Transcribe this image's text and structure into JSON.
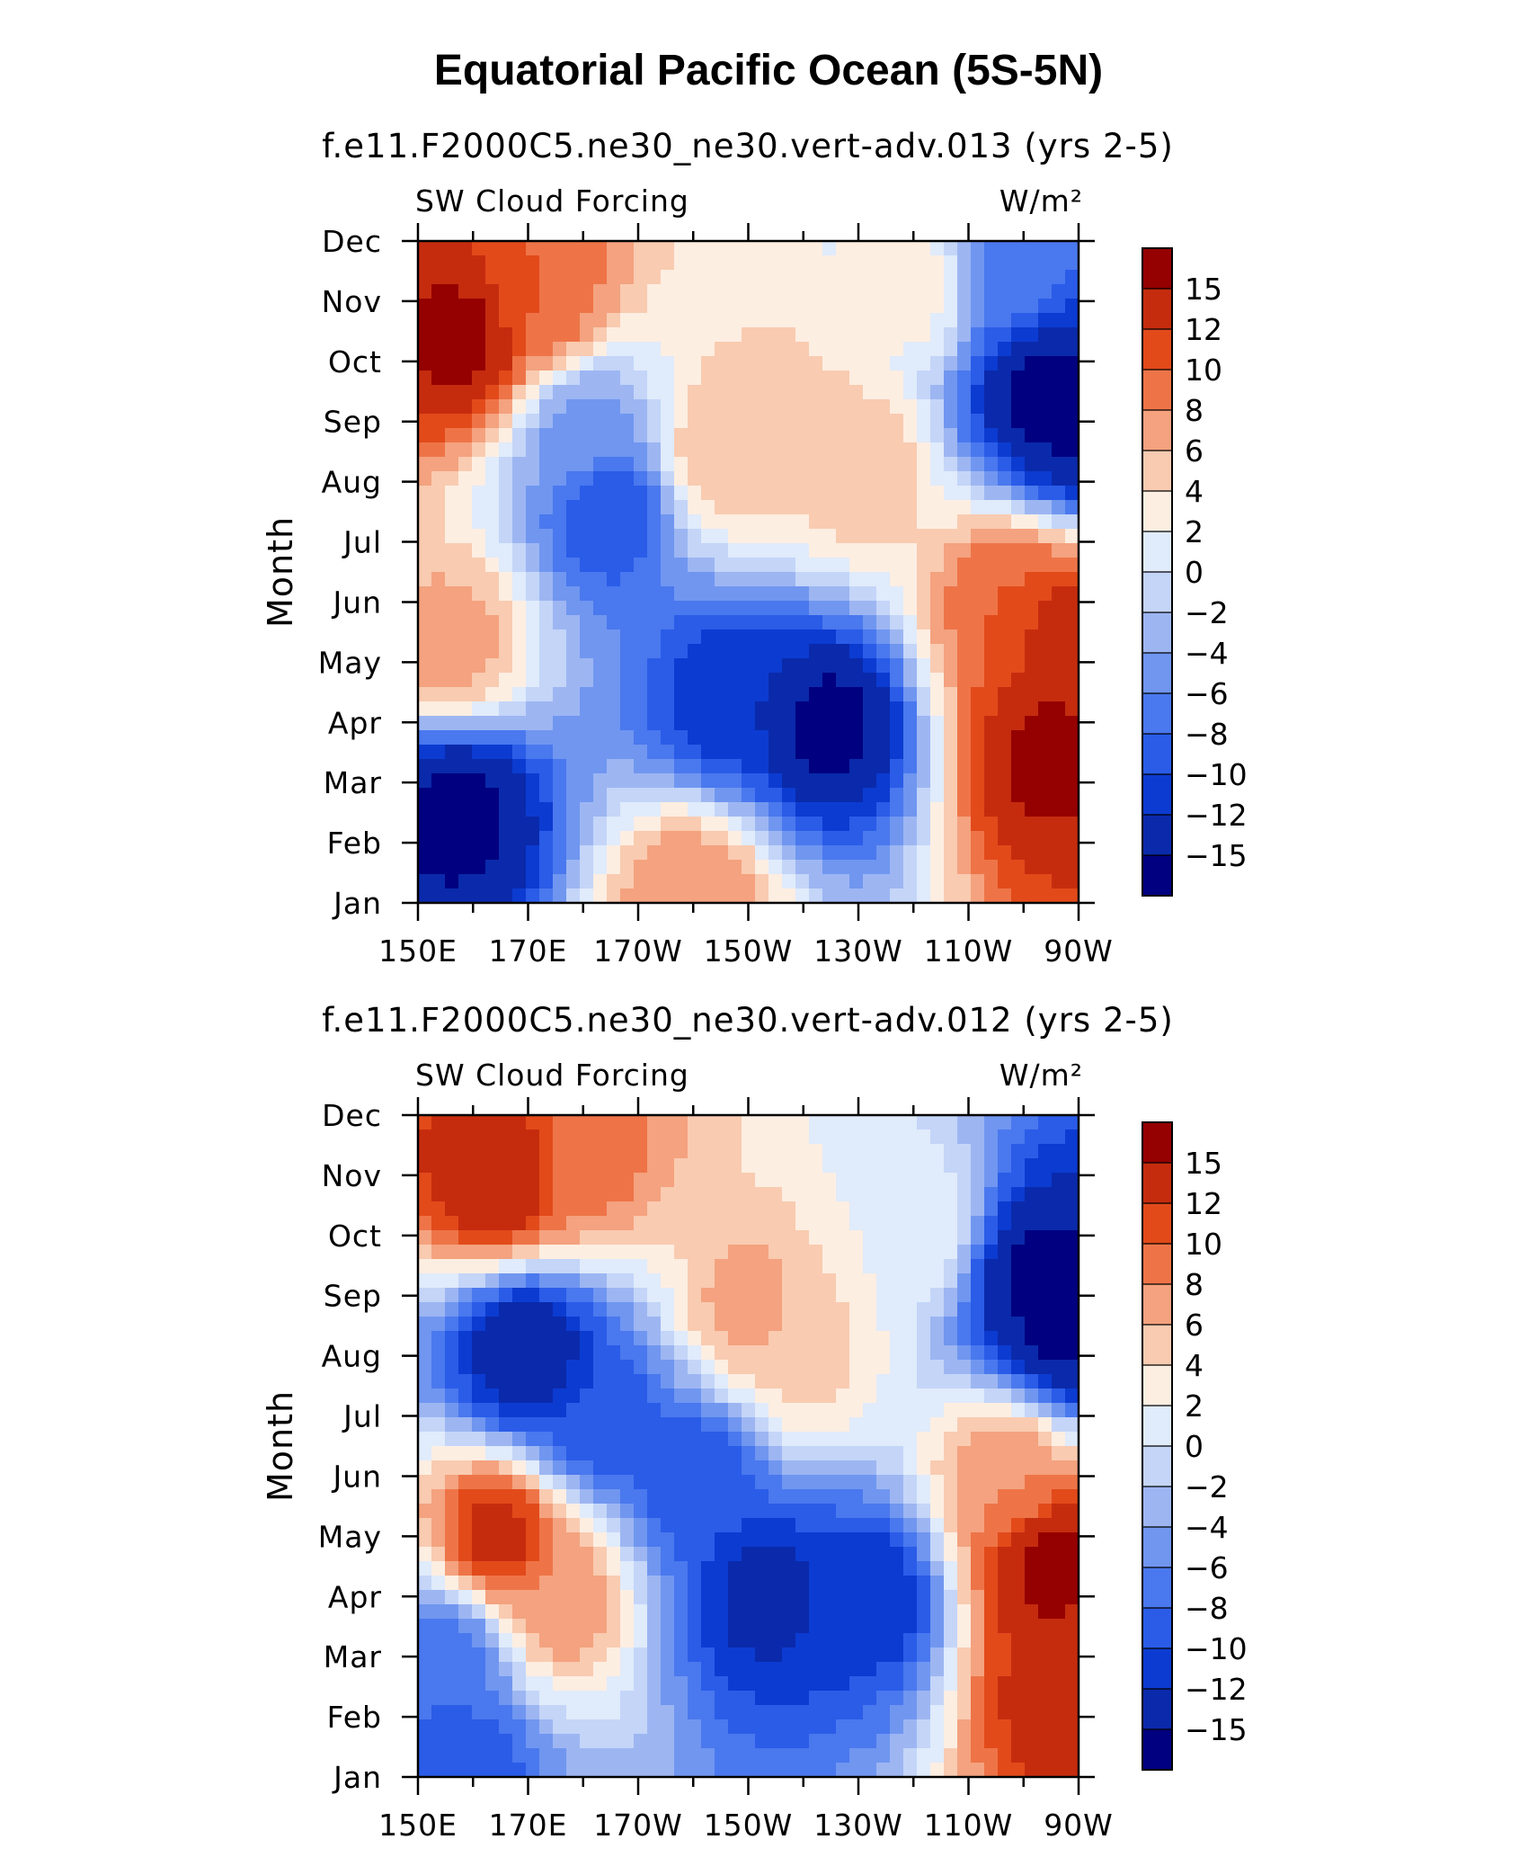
{
  "figure_title": "Equatorial Pacific Ocean (5S-5N)",
  "chart_data": [
    {
      "type": "heatmap",
      "title": "f.e11.F2000C5.ne30_ne30.vert-adv.013 (yrs 2-5)",
      "left_label": "SW Cloud Forcing",
      "units": "W/m²",
      "ylabel": "Month",
      "x_ticks": [
        "150E",
        "170E",
        "170W",
        "150W",
        "130W",
        "110W",
        "90W"
      ],
      "y_ticks": [
        "Jan",
        "Feb",
        "Mar",
        "Apr",
        "May",
        "Jun",
        "Jul",
        "Aug",
        "Sep",
        "Oct",
        "Nov",
        "Dec"
      ],
      "x_range": [
        "150E",
        "90W"
      ],
      "features": [
        {
          "lon": 158,
          "month": 10.4,
          "value": 16
        },
        {
          "lon": 172,
          "month": 11.0,
          "value": 10
        },
        {
          "lon": 156,
          "month": 5.3,
          "value": 7
        },
        {
          "lon": 205,
          "month": 8.5,
          "value": 6
        },
        {
          "lon": 215,
          "month": 9.0,
          "value": 5
        },
        {
          "lon": 230,
          "month": 8.2,
          "value": 6
        },
        {
          "lon": 200,
          "month": 1.1,
          "value": 8
        },
        {
          "lon": 157,
          "month": 2.5,
          "value": -16
        },
        {
          "lon": 225,
          "month": 4.0,
          "value": -16
        },
        {
          "lon": 207,
          "month": 4.5,
          "value": -12
        },
        {
          "lon": 185,
          "month": 7.5,
          "value": -10
        },
        {
          "lon": 180,
          "month": 8.8,
          "value": -5
        },
        {
          "lon": 263,
          "month": 9.5,
          "value": -16
        },
        {
          "lon": 270,
          "month": 9.0,
          "value": -16
        },
        {
          "lon": 258,
          "month": 11.5,
          "value": -7
        },
        {
          "lon": 265,
          "month": 3.5,
          "value": 16
        },
        {
          "lon": 267,
          "month": 5.5,
          "value": 14
        },
        {
          "lon": 257,
          "month": 6.0,
          "value": 10
        },
        {
          "lon": 240,
          "month": 11.2,
          "value": 3
        }
      ]
    },
    {
      "type": "heatmap",
      "title": "f.e11.F2000C5.ne30_ne30.vert-adv.012 (yrs 2-5)",
      "left_label": "SW Cloud Forcing",
      "units": "W/m²",
      "ylabel": "Month",
      "x_ticks": [
        "150E",
        "170E",
        "170W",
        "150W",
        "130W",
        "110W",
        "90W"
      ],
      "y_ticks": [
        "Jan",
        "Feb",
        "Mar",
        "Apr",
        "May",
        "Jun",
        "Jul",
        "Aug",
        "Sep",
        "Oct",
        "Nov",
        "Dec"
      ],
      "x_range": [
        "150E",
        "90W"
      ],
      "features": [
        {
          "lon": 165,
          "month": 11.0,
          "value": 15
        },
        {
          "lon": 180,
          "month": 11.3,
          "value": 9
        },
        {
          "lon": 165,
          "month": 5.0,
          "value": 13
        },
        {
          "lon": 175,
          "month": 4.0,
          "value": 8
        },
        {
          "lon": 210,
          "month": 8.8,
          "value": 7
        },
        {
          "lon": 220,
          "month": 8.0,
          "value": 5
        },
        {
          "lon": 170,
          "month": 8.0,
          "value": -15
        },
        {
          "lon": 182,
          "month": 7.0,
          "value": -10
        },
        {
          "lon": 200,
          "month": 6.0,
          "value": -10
        },
        {
          "lon": 213,
          "month": 4.0,
          "value": -13
        },
        {
          "lon": 232,
          "month": 4.0,
          "value": -12
        },
        {
          "lon": 157,
          "month": 1.2,
          "value": -10
        },
        {
          "lon": 156,
          "month": 3.0,
          "value": -7
        },
        {
          "lon": 263,
          "month": 9.2,
          "value": -16
        },
        {
          "lon": 268,
          "month": 8.5,
          "value": -16
        },
        {
          "lon": 265,
          "month": 4.5,
          "value": 16
        },
        {
          "lon": 268,
          "month": 2.5,
          "value": 14
        },
        {
          "lon": 257,
          "month": 6.0,
          "value": 8
        },
        {
          "lon": 240,
          "month": 10.0,
          "value": 2
        }
      ]
    }
  ],
  "colorbar": {
    "labels": [
      "15",
      "12",
      "10",
      "8",
      "6",
      "4",
      "2",
      "0",
      "−2",
      "−4",
      "−6",
      "−8",
      "−10",
      "−12",
      "−15"
    ],
    "levels": [
      -15,
      -12,
      -10,
      -8,
      -6,
      -4,
      -2,
      0,
      2,
      4,
      6,
      8,
      10,
      12,
      15
    ],
    "colors": [
      "#000080",
      "#0a2aab",
      "#0c3bd1",
      "#2a5ce8",
      "#4a78ee",
      "#7096f0",
      "#9db6f2",
      "#c4d5f8",
      "#e0ebfb",
      "#fdeee2",
      "#f9cbb1",
      "#f4a27f",
      "#ee7448",
      "#e24a1a",
      "#c52c0e",
      "#950000"
    ]
  }
}
